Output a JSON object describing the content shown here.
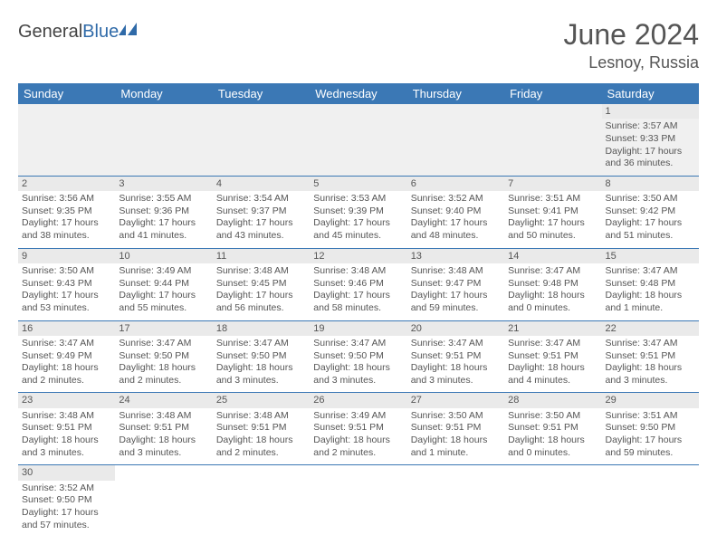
{
  "logo": {
    "word1": "General",
    "word2": "Blue"
  },
  "title": "June 2024",
  "location": "Lesnoy, Russia",
  "colors": {
    "header_bg": "#3b78b5",
    "header_text": "#ffffff",
    "daynum_bg": "#eaeaea",
    "text": "#555555",
    "border": "#3b78b5",
    "logo_blue": "#2f6aa8"
  },
  "weekdays": [
    "Sunday",
    "Monday",
    "Tuesday",
    "Wednesday",
    "Thursday",
    "Friday",
    "Saturday"
  ],
  "weeks": [
    [
      null,
      null,
      null,
      null,
      null,
      null,
      {
        "n": "1",
        "rise": "Sunrise: 3:57 AM",
        "set": "Sunset: 9:33 PM",
        "day": "Daylight: 17 hours and 36 minutes."
      }
    ],
    [
      {
        "n": "2",
        "rise": "Sunrise: 3:56 AM",
        "set": "Sunset: 9:35 PM",
        "day": "Daylight: 17 hours and 38 minutes."
      },
      {
        "n": "3",
        "rise": "Sunrise: 3:55 AM",
        "set": "Sunset: 9:36 PM",
        "day": "Daylight: 17 hours and 41 minutes."
      },
      {
        "n": "4",
        "rise": "Sunrise: 3:54 AM",
        "set": "Sunset: 9:37 PM",
        "day": "Daylight: 17 hours and 43 minutes."
      },
      {
        "n": "5",
        "rise": "Sunrise: 3:53 AM",
        "set": "Sunset: 9:39 PM",
        "day": "Daylight: 17 hours and 45 minutes."
      },
      {
        "n": "6",
        "rise": "Sunrise: 3:52 AM",
        "set": "Sunset: 9:40 PM",
        "day": "Daylight: 17 hours and 48 minutes."
      },
      {
        "n": "7",
        "rise": "Sunrise: 3:51 AM",
        "set": "Sunset: 9:41 PM",
        "day": "Daylight: 17 hours and 50 minutes."
      },
      {
        "n": "8",
        "rise": "Sunrise: 3:50 AM",
        "set": "Sunset: 9:42 PM",
        "day": "Daylight: 17 hours and 51 minutes."
      }
    ],
    [
      {
        "n": "9",
        "rise": "Sunrise: 3:50 AM",
        "set": "Sunset: 9:43 PM",
        "day": "Daylight: 17 hours and 53 minutes."
      },
      {
        "n": "10",
        "rise": "Sunrise: 3:49 AM",
        "set": "Sunset: 9:44 PM",
        "day": "Daylight: 17 hours and 55 minutes."
      },
      {
        "n": "11",
        "rise": "Sunrise: 3:48 AM",
        "set": "Sunset: 9:45 PM",
        "day": "Daylight: 17 hours and 56 minutes."
      },
      {
        "n": "12",
        "rise": "Sunrise: 3:48 AM",
        "set": "Sunset: 9:46 PM",
        "day": "Daylight: 17 hours and 58 minutes."
      },
      {
        "n": "13",
        "rise": "Sunrise: 3:48 AM",
        "set": "Sunset: 9:47 PM",
        "day": "Daylight: 17 hours and 59 minutes."
      },
      {
        "n": "14",
        "rise": "Sunrise: 3:47 AM",
        "set": "Sunset: 9:48 PM",
        "day": "Daylight: 18 hours and 0 minutes."
      },
      {
        "n": "15",
        "rise": "Sunrise: 3:47 AM",
        "set": "Sunset: 9:48 PM",
        "day": "Daylight: 18 hours and 1 minute."
      }
    ],
    [
      {
        "n": "16",
        "rise": "Sunrise: 3:47 AM",
        "set": "Sunset: 9:49 PM",
        "day": "Daylight: 18 hours and 2 minutes."
      },
      {
        "n": "17",
        "rise": "Sunrise: 3:47 AM",
        "set": "Sunset: 9:50 PM",
        "day": "Daylight: 18 hours and 2 minutes."
      },
      {
        "n": "18",
        "rise": "Sunrise: 3:47 AM",
        "set": "Sunset: 9:50 PM",
        "day": "Daylight: 18 hours and 3 minutes."
      },
      {
        "n": "19",
        "rise": "Sunrise: 3:47 AM",
        "set": "Sunset: 9:50 PM",
        "day": "Daylight: 18 hours and 3 minutes."
      },
      {
        "n": "20",
        "rise": "Sunrise: 3:47 AM",
        "set": "Sunset: 9:51 PM",
        "day": "Daylight: 18 hours and 3 minutes."
      },
      {
        "n": "21",
        "rise": "Sunrise: 3:47 AM",
        "set": "Sunset: 9:51 PM",
        "day": "Daylight: 18 hours and 4 minutes."
      },
      {
        "n": "22",
        "rise": "Sunrise: 3:47 AM",
        "set": "Sunset: 9:51 PM",
        "day": "Daylight: 18 hours and 3 minutes."
      }
    ],
    [
      {
        "n": "23",
        "rise": "Sunrise: 3:48 AM",
        "set": "Sunset: 9:51 PM",
        "day": "Daylight: 18 hours and 3 minutes."
      },
      {
        "n": "24",
        "rise": "Sunrise: 3:48 AM",
        "set": "Sunset: 9:51 PM",
        "day": "Daylight: 18 hours and 3 minutes."
      },
      {
        "n": "25",
        "rise": "Sunrise: 3:48 AM",
        "set": "Sunset: 9:51 PM",
        "day": "Daylight: 18 hours and 2 minutes."
      },
      {
        "n": "26",
        "rise": "Sunrise: 3:49 AM",
        "set": "Sunset: 9:51 PM",
        "day": "Daylight: 18 hours and 2 minutes."
      },
      {
        "n": "27",
        "rise": "Sunrise: 3:50 AM",
        "set": "Sunset: 9:51 PM",
        "day": "Daylight: 18 hours and 1 minute."
      },
      {
        "n": "28",
        "rise": "Sunrise: 3:50 AM",
        "set": "Sunset: 9:51 PM",
        "day": "Daylight: 18 hours and 0 minutes."
      },
      {
        "n": "29",
        "rise": "Sunrise: 3:51 AM",
        "set": "Sunset: 9:50 PM",
        "day": "Daylight: 17 hours and 59 minutes."
      }
    ],
    [
      {
        "n": "30",
        "rise": "Sunrise: 3:52 AM",
        "set": "Sunset: 9:50 PM",
        "day": "Daylight: 17 hours and 57 minutes."
      },
      null,
      null,
      null,
      null,
      null,
      null
    ]
  ]
}
